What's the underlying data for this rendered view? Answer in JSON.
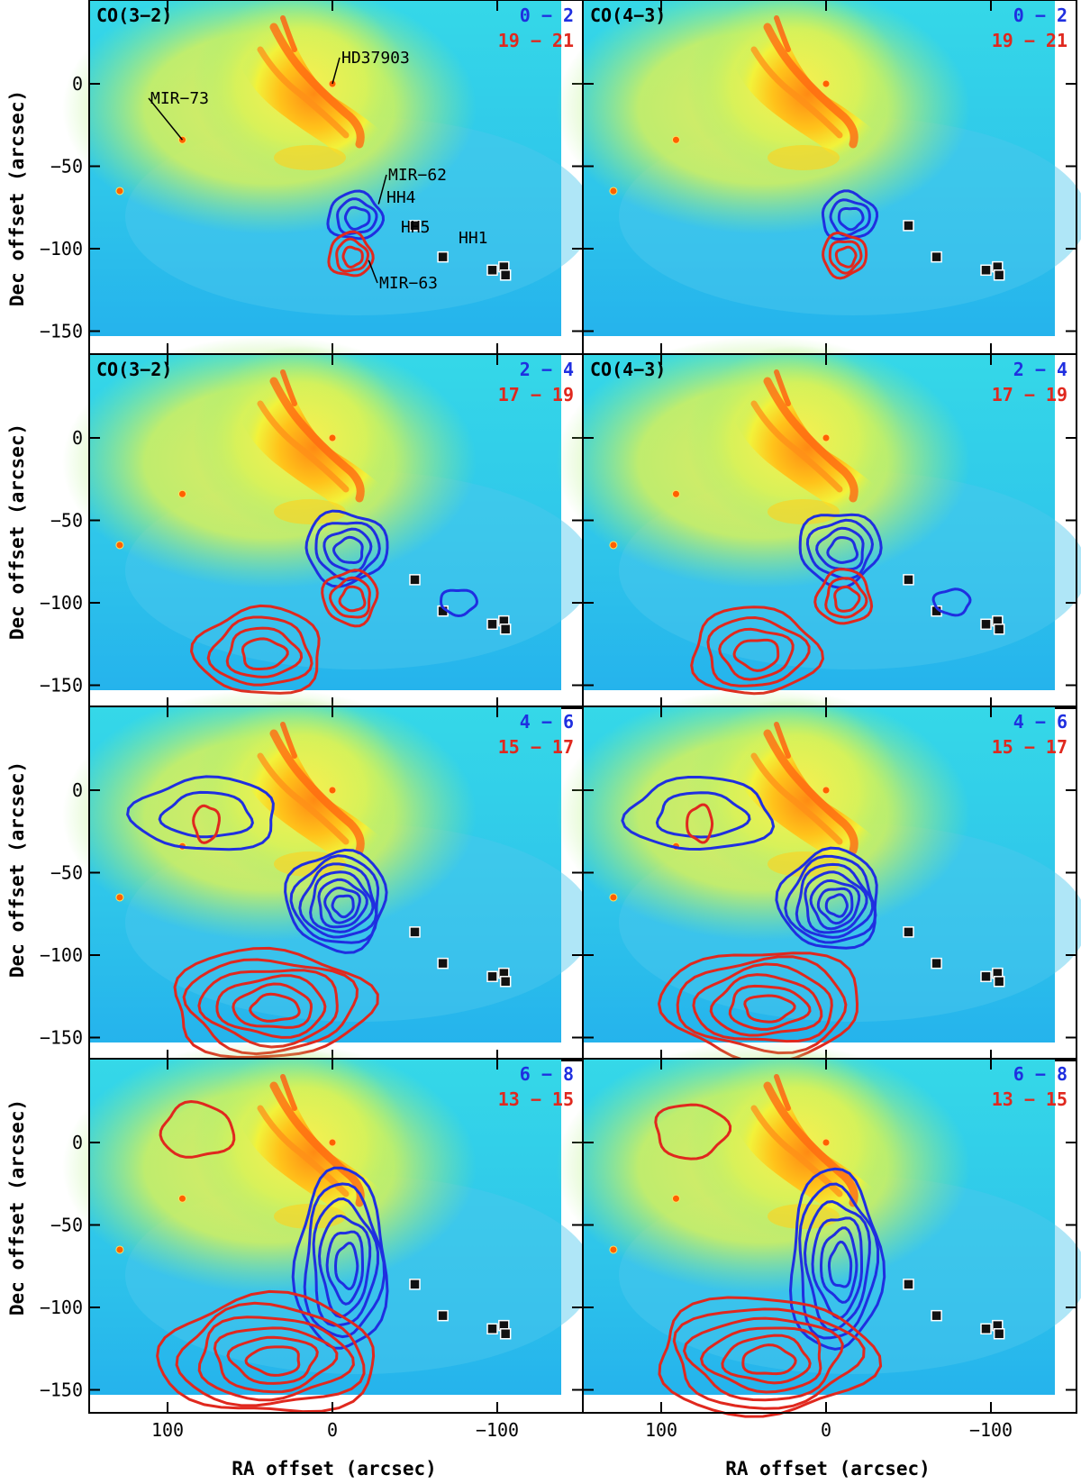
{
  "figure": {
    "ylabel": "Dec offset (arcsec)",
    "xlabel": "RA offset (arcsec)",
    "x_ticks": [
      "100",
      "0",
      "−100"
    ],
    "y_ticks": [
      "0",
      "−50",
      "−100",
      "−150"
    ],
    "colors": {
      "blue": "#1f2fe0",
      "red": "#e0281e",
      "frame": "#000000"
    }
  },
  "panels": [
    {
      "id": "r1c1",
      "line": "CO(3−2)",
      "blue": "0 − 2",
      "red": "19 − 21"
    },
    {
      "id": "r1c2",
      "line": "CO(4−3)",
      "blue": "0 − 2",
      "red": "19 − 21"
    },
    {
      "id": "r2c1",
      "line": "CO(3−2)",
      "blue": "2 − 4",
      "red": "17 − 19"
    },
    {
      "id": "r2c2",
      "line": "CO(4−3)",
      "blue": "2 − 4",
      "red": "17 − 19"
    },
    {
      "id": "r3c1",
      "line": "",
      "blue": "4 − 6",
      "red": "15 − 17"
    },
    {
      "id": "r3c2",
      "line": "",
      "blue": "4 − 6",
      "red": "15 − 17"
    },
    {
      "id": "r4c1",
      "line": "",
      "blue": "6 − 8",
      "red": "13 − 15"
    },
    {
      "id": "r4c2",
      "line": "",
      "blue": "6 − 8",
      "red": "13 − 15"
    }
  ],
  "sources": {
    "hd37903": "HD37903",
    "mir73": "MIR−73",
    "mir62": "MIR−62",
    "mir63": "MIR−63",
    "hh4": "HH4",
    "hh5": "HH5",
    "hh1": "HH1"
  }
}
